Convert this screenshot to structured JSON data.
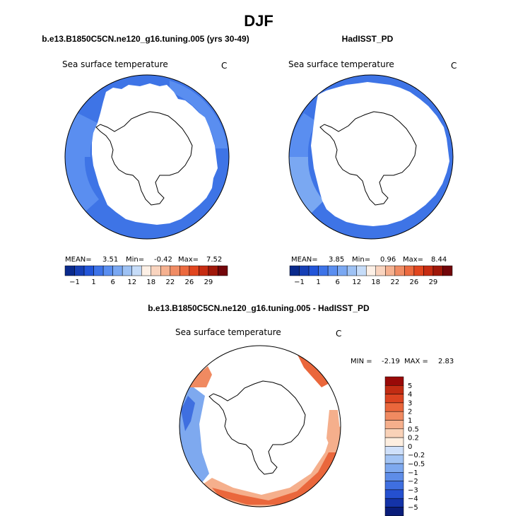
{
  "chart_data": {
    "type": "heatmap",
    "title": "DJF",
    "palette_full": [
      "#0a2a8c",
      "#163fb5",
      "#2255d8",
      "#3d73e8",
      "#5a8ef0",
      "#7aa8f2",
      "#9ec2f4",
      "#c6dcf8",
      "#fdf0e6",
      "#f9d4bf",
      "#f5b190",
      "#f08c64",
      "#ec6a3f",
      "#e1461f",
      "#c62c12",
      "#a0180a",
      "#72060a"
    ],
    "palette_diff": [
      "#0a1d7a",
      "#1433a8",
      "#2550d0",
      "#3f6fe0",
      "#5e8de8",
      "#7ea9ef",
      "#a3c4f4",
      "#cfe0fa",
      "#fdeee0",
      "#f9d2b8",
      "#f5af8c",
      "#f08a61",
      "#ea673c",
      "#dc4421",
      "#c22c13",
      "#990a08"
    ],
    "panels": [
      {
        "header": "b.e13.B1850C5CN.ne120_g16.tuning.005 (yrs 30-49)",
        "subtitle": "Sea surface temperature",
        "units": "C",
        "mean_label": "MEAN=",
        "mean": "3.51",
        "min_label": "Min=",
        "min": "-0.42",
        "max_label": "Max=",
        "max": "7.52",
        "colorbar_ticks": [
          "-1",
          "1",
          "6",
          "12",
          "18",
          "22",
          "26",
          "29"
        ],
        "field": {
          "range": [
            -0.42,
            7.52
          ],
          "dominant_level": 3
        }
      },
      {
        "header": "HadISST_PD",
        "subtitle": "Sea surface temperature",
        "units": "C",
        "mean_label": "MEAN=",
        "mean": "3.85",
        "min_label": "Min=",
        "min": "0.96",
        "max_label": "Max=",
        "max": "8.44",
        "colorbar_ticks": [
          "-1",
          "1",
          "6",
          "12",
          "18",
          "22",
          "26",
          "29"
        ],
        "field": {
          "range": [
            0.96,
            8.44
          ],
          "dominant_level": 3
        }
      },
      {
        "header": "b.e13.B1850C5CN.ne120_g16.tuning.005 - HadISST_PD",
        "subtitle": "Sea surface temperature",
        "units": "C",
        "min_label": "MIN =",
        "min": "-2.19",
        "max_label": "MAX =",
        "max": "2.83",
        "colorbar_ticks": [
          "5",
          "4",
          "3",
          "2",
          "1",
          "0.5",
          "0.2",
          "0",
          "-0.2",
          "-0.5",
          "-1",
          "-2",
          "-3",
          "-4",
          "-5"
        ],
        "field": {
          "range": [
            -2.19,
            2.83
          ]
        }
      }
    ]
  }
}
